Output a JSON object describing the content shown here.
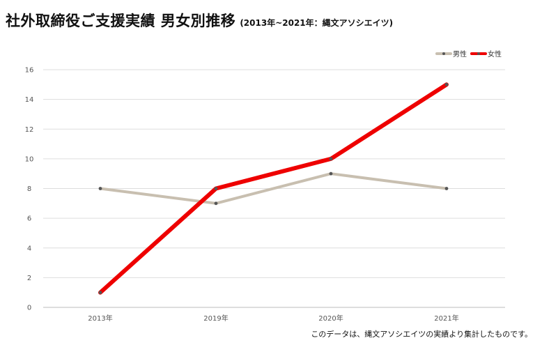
{
  "title": "社外取締役ご支援実績 男女別推移",
  "subtitle": "(2013年~2021年：縄文アソシエイツ)",
  "footnote": "このデータは、縄文アソシエイツの実績より集計したものです。",
  "chart_data": {
    "type": "line",
    "categories": [
      "2013年",
      "2019年",
      "2020年",
      "2021年"
    ],
    "series": [
      {
        "name": "男性",
        "values": [
          8,
          7,
          9,
          8
        ],
        "color": "#c8bfb0"
      },
      {
        "name": "女性",
        "values": [
          1,
          8,
          10,
          15
        ],
        "color": "#ee0000"
      }
    ],
    "ylim": [
      0,
      16
    ],
    "yticks": [
      0,
      2,
      4,
      6,
      8,
      10,
      12,
      14,
      16
    ],
    "grid": true,
    "legend": "top-right",
    "xlabel": "",
    "ylabel": ""
  }
}
